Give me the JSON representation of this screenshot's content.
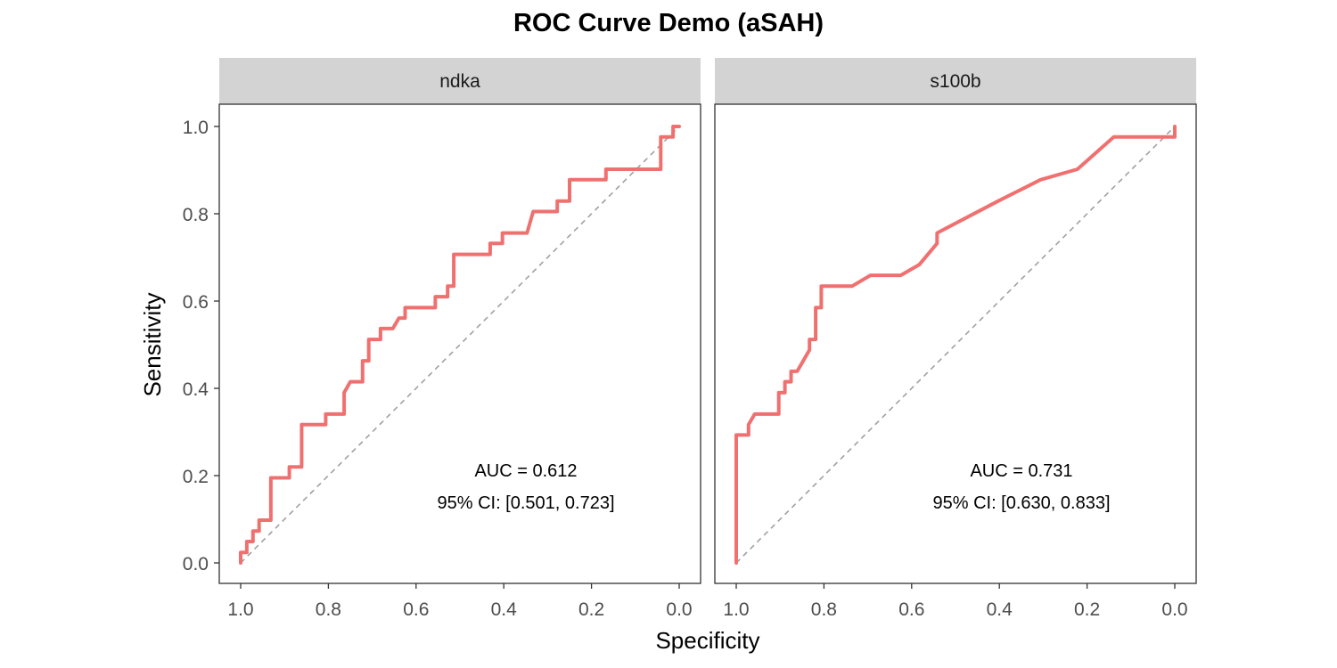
{
  "title": "ROC Curve Demo (aSAH)",
  "chart_data": {
    "type": "line",
    "title": "ROC Curve Demo (aSAH)",
    "xlabel": "Specificity",
    "ylabel": "Sensitivity",
    "xlim": [
      1.0,
      0.0
    ],
    "ylim": [
      0.0,
      1.0
    ],
    "x_reversed": true,
    "x_ticks": [
      "1.0",
      "0.8",
      "0.6",
      "0.4",
      "0.2",
      "0.0"
    ],
    "y_ticks": [
      "0.0",
      "0.2",
      "0.4",
      "0.6",
      "0.8",
      "1.0"
    ],
    "grid": false,
    "line_color": "#f07070",
    "reference_line_color": "#a0a0a0",
    "strip_color": "#d3d3d3",
    "panels": [
      {
        "name": "ndka",
        "auc_label": "AUC = 0.612",
        "ci_label": "95% CI: [0.501, 0.723]",
        "points": [
          [
            1.0,
            0.0
          ],
          [
            1.0,
            0.024
          ],
          [
            0.986,
            0.024
          ],
          [
            0.986,
            0.049
          ],
          [
            0.972,
            0.049
          ],
          [
            0.972,
            0.073
          ],
          [
            0.958,
            0.073
          ],
          [
            0.958,
            0.098
          ],
          [
            0.931,
            0.098
          ],
          [
            0.931,
            0.195
          ],
          [
            0.889,
            0.195
          ],
          [
            0.889,
            0.22
          ],
          [
            0.861,
            0.22
          ],
          [
            0.861,
            0.317
          ],
          [
            0.806,
            0.317
          ],
          [
            0.806,
            0.341
          ],
          [
            0.764,
            0.341
          ],
          [
            0.764,
            0.39
          ],
          [
            0.75,
            0.415
          ],
          [
            0.722,
            0.415
          ],
          [
            0.722,
            0.463
          ],
          [
            0.708,
            0.463
          ],
          [
            0.708,
            0.512
          ],
          [
            0.681,
            0.512
          ],
          [
            0.681,
            0.537
          ],
          [
            0.653,
            0.537
          ],
          [
            0.639,
            0.561
          ],
          [
            0.625,
            0.561
          ],
          [
            0.625,
            0.585
          ],
          [
            0.556,
            0.585
          ],
          [
            0.556,
            0.61
          ],
          [
            0.528,
            0.61
          ],
          [
            0.528,
            0.634
          ],
          [
            0.514,
            0.634
          ],
          [
            0.514,
            0.707
          ],
          [
            0.431,
            0.707
          ],
          [
            0.431,
            0.732
          ],
          [
            0.403,
            0.732
          ],
          [
            0.403,
            0.756
          ],
          [
            0.347,
            0.756
          ],
          [
            0.333,
            0.805
          ],
          [
            0.278,
            0.805
          ],
          [
            0.278,
            0.829
          ],
          [
            0.25,
            0.829
          ],
          [
            0.25,
            0.878
          ],
          [
            0.167,
            0.878
          ],
          [
            0.167,
            0.902
          ],
          [
            0.042,
            0.902
          ],
          [
            0.042,
            0.976
          ],
          [
            0.014,
            0.976
          ],
          [
            0.014,
            1.0
          ],
          [
            0.0,
            1.0
          ]
        ]
      },
      {
        "name": "s100b",
        "auc_label": "AUC = 0.731",
        "ci_label": "95% CI: [0.630, 0.833]",
        "points": [
          [
            1.0,
            0.0
          ],
          [
            1.0,
            0.293
          ],
          [
            0.972,
            0.293
          ],
          [
            0.972,
            0.317
          ],
          [
            0.958,
            0.341
          ],
          [
            0.903,
            0.341
          ],
          [
            0.903,
            0.39
          ],
          [
            0.889,
            0.39
          ],
          [
            0.889,
            0.415
          ],
          [
            0.875,
            0.415
          ],
          [
            0.875,
            0.439
          ],
          [
            0.861,
            0.439
          ],
          [
            0.833,
            0.488
          ],
          [
            0.833,
            0.512
          ],
          [
            0.819,
            0.512
          ],
          [
            0.819,
            0.585
          ],
          [
            0.806,
            0.585
          ],
          [
            0.806,
            0.634
          ],
          [
            0.736,
            0.634
          ],
          [
            0.694,
            0.659
          ],
          [
            0.625,
            0.659
          ],
          [
            0.583,
            0.683
          ],
          [
            0.542,
            0.732
          ],
          [
            0.542,
            0.756
          ],
          [
            0.403,
            0.829
          ],
          [
            0.306,
            0.878
          ],
          [
            0.222,
            0.902
          ],
          [
            0.139,
            0.976
          ],
          [
            0.0,
            0.976
          ],
          [
            0.0,
            1.0
          ]
        ]
      }
    ]
  }
}
